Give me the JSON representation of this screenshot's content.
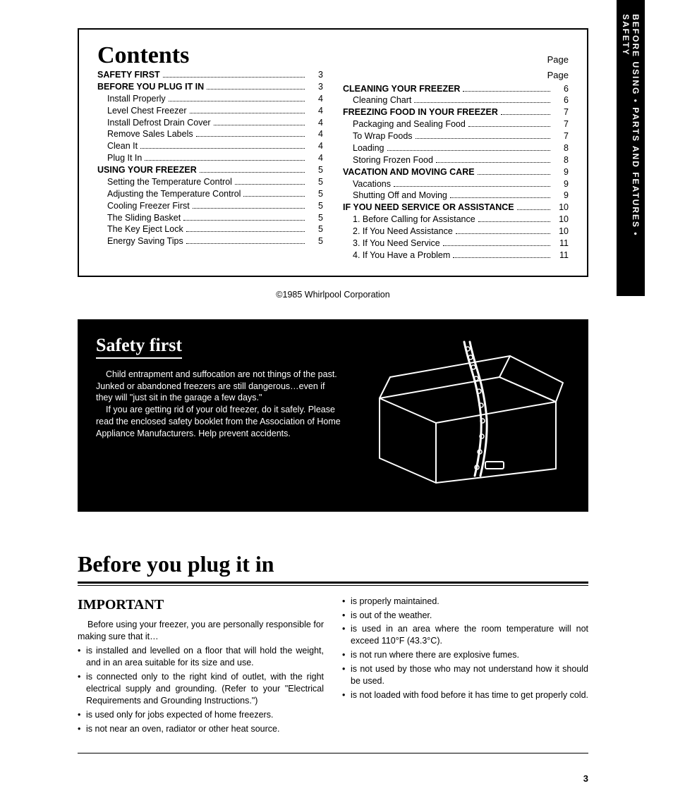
{
  "sideTab": "BEFORE USING • PARTS AND FEATURES • SAFETY",
  "contents": {
    "title": "Contents",
    "pageLabel": "Page",
    "left": [
      {
        "label": "SAFETY FIRST",
        "page": "3",
        "bold": true
      },
      {
        "label": "BEFORE YOU PLUG IT IN",
        "page": "3",
        "bold": true
      },
      {
        "label": "Install Properly",
        "page": "4",
        "indent": true
      },
      {
        "label": "Level Chest Freezer",
        "page": "4",
        "indent": true
      },
      {
        "label": "Install Defrost Drain Cover",
        "page": "4",
        "indent": true
      },
      {
        "label": "Remove Sales Labels",
        "page": "4",
        "indent": true
      },
      {
        "label": "Clean It",
        "page": "4",
        "indent": true
      },
      {
        "label": "Plug It In",
        "page": "4",
        "indent": true
      },
      {
        "label": "USING YOUR FREEZER",
        "page": "5",
        "bold": true
      },
      {
        "label": "Setting the Temperature Control",
        "page": "5",
        "indent": true
      },
      {
        "label": "Adjusting the Temperature Control",
        "page": "5",
        "indent": true
      },
      {
        "label": "Cooling Freezer First",
        "page": "5",
        "indent": true
      },
      {
        "label": "The Sliding Basket",
        "page": "5",
        "indent": true
      },
      {
        "label": "The Key Eject Lock",
        "page": "5",
        "indent": true
      },
      {
        "label": "Energy Saving Tips",
        "page": "5",
        "indent": true
      }
    ],
    "right": [
      {
        "label": "CLEANING YOUR FREEZER",
        "page": "6",
        "bold": true
      },
      {
        "label": "Cleaning Chart",
        "page": "6",
        "indent": true
      },
      {
        "label": "FREEZING FOOD IN YOUR FREEZER",
        "page": "7",
        "bold": true
      },
      {
        "label": "Packaging and Sealing Food",
        "page": "7",
        "indent": true
      },
      {
        "label": "To Wrap Foods",
        "page": "7",
        "indent": true
      },
      {
        "label": "Loading",
        "page": "8",
        "indent": true
      },
      {
        "label": "Storing Frozen Food",
        "page": "8",
        "indent": true
      },
      {
        "label": "VACATION AND MOVING CARE",
        "page": "9",
        "bold": true
      },
      {
        "label": "Vacations",
        "page": "9",
        "indent": true
      },
      {
        "label": "Shutting Off and Moving",
        "page": "9",
        "indent": true
      },
      {
        "label": "IF YOU NEED SERVICE OR ASSISTANCE",
        "page": "10",
        "bold": true
      },
      {
        "label": "1. Before Calling for Assistance",
        "page": "10",
        "indent": true
      },
      {
        "label": "2. If You Need Assistance",
        "page": "10",
        "indent": true
      },
      {
        "label": "3. If You Need Service",
        "page": "11",
        "indent": true
      },
      {
        "label": "4. If You Have a Problem",
        "page": "11",
        "indent": true
      }
    ]
  },
  "copyright": "©1985 Whirlpool Corporation",
  "safety": {
    "title": "Safety first",
    "p1": "Child entrapment and suffocation are not things of the past. Junked or abandoned freezers are still dangerous…even if they will \"just sit in the garage a few days.\"",
    "p2": "If you are getting rid of your old freezer, do it safely. Please read the enclosed safety booklet from the Association of Home Appliance Manufacturers. Help prevent accidents."
  },
  "before": {
    "title": "Before you plug it in",
    "importantTitle": "IMPORTANT",
    "lead": "Before using your freezer, you are personally responsible for making sure that it…",
    "leftBullets": [
      "is installed and levelled on a floor that will hold the weight, and in an area suitable for its size and use.",
      "is connected only to the right kind of outlet, with the right electrical supply and grounding. (Refer to your \"Electrical Requirements and Grounding Instructions.\")",
      "is used only for jobs expected of home freezers.",
      "is not near an oven, radiator or other heat source."
    ],
    "rightBullets": [
      "is properly maintained.",
      "is out of the weather.",
      "is used in an area where the room temperature will not exceed 110°F (43.3°C).",
      "is not run where there are explosive fumes.",
      "is not used by those who may not understand how it should be used.",
      "is not loaded with food before it has time to get properly cold."
    ]
  },
  "pageNumber": "3"
}
